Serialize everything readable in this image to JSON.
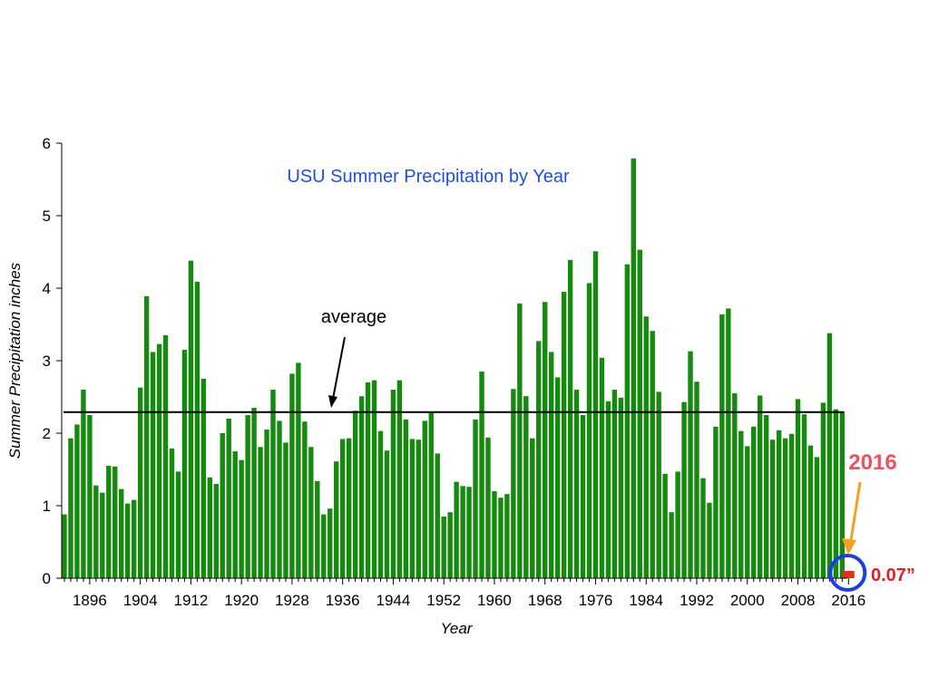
{
  "chart_data": {
    "type": "bar",
    "title": "USU Summer Precipitation by Year",
    "xlabel": "Year",
    "ylabel": "Summer Precipitation  inches",
    "ylim": [
      0,
      6
    ],
    "yticks": [
      0,
      1,
      2,
      3,
      4,
      5,
      6
    ],
    "xticks": [
      1896,
      1904,
      1912,
      1920,
      1928,
      1936,
      1944,
      1952,
      1960,
      1968,
      1976,
      1984,
      1992,
      2000,
      2008,
      2016
    ],
    "x_start": 1892,
    "x_end": 2016,
    "grid": false,
    "years": [
      1892,
      1893,
      1894,
      1895,
      1896,
      1897,
      1898,
      1899,
      1900,
      1901,
      1902,
      1903,
      1904,
      1905,
      1906,
      1907,
      1908,
      1909,
      1910,
      1911,
      1912,
      1913,
      1914,
      1915,
      1916,
      1917,
      1918,
      1919,
      1920,
      1921,
      1922,
      1923,
      1924,
      1925,
      1926,
      1927,
      1928,
      1929,
      1930,
      1931,
      1932,
      1933,
      1934,
      1935,
      1936,
      1937,
      1938,
      1939,
      1940,
      1941,
      1942,
      1943,
      1944,
      1945,
      1946,
      1947,
      1948,
      1949,
      1950,
      1951,
      1952,
      1953,
      1954,
      1955,
      1956,
      1957,
      1958,
      1959,
      1960,
      1961,
      1962,
      1963,
      1964,
      1965,
      1966,
      1967,
      1968,
      1969,
      1970,
      1971,
      1972,
      1973,
      1974,
      1975,
      1976,
      1977,
      1978,
      1979,
      1980,
      1981,
      1982,
      1983,
      1984,
      1985,
      1986,
      1987,
      1988,
      1989,
      1990,
      1991,
      1992,
      1993,
      1994,
      1995,
      1996,
      1997,
      1998,
      1999,
      2000,
      2001,
      2002,
      2003,
      2004,
      2005,
      2006,
      2007,
      2008,
      2009,
      2010,
      2011,
      2012,
      2013,
      2014,
      2015,
      2016
    ],
    "values": [
      0.88,
      1.93,
      2.12,
      2.6,
      2.25,
      1.28,
      1.18,
      1.55,
      1.54,
      1.23,
      1.03,
      1.08,
      2.63,
      3.89,
      3.12,
      3.23,
      3.35,
      1.79,
      1.47,
      3.15,
      4.38,
      4.09,
      2.75,
      1.39,
      1.3,
      2.0,
      2.2,
      1.75,
      1.63,
      2.25,
      2.35,
      1.81,
      2.05,
      2.6,
      2.17,
      1.87,
      2.82,
      2.97,
      2.16,
      1.81,
      1.34,
      0.88,
      0.96,
      1.61,
      1.92,
      1.93,
      2.31,
      2.51,
      2.7,
      2.73,
      2.03,
      1.76,
      2.6,
      2.73,
      2.19,
      1.92,
      1.91,
      2.17,
      2.3,
      1.72,
      0.85,
      0.91,
      1.33,
      1.27,
      1.26,
      2.19,
      2.85,
      1.94,
      1.2,
      1.11,
      1.16,
      2.61,
      3.79,
      2.51,
      1.93,
      3.27,
      3.81,
      3.12,
      2.77,
      3.95,
      4.39,
      2.6,
      2.25,
      4.07,
      4.51,
      3.04,
      2.44,
      2.6,
      2.49,
      4.33,
      5.79,
      4.53,
      3.61,
      3.41,
      2.57,
      1.44,
      0.91,
      1.47,
      2.43,
      3.13,
      2.71,
      1.38,
      1.04,
      2.09,
      3.64,
      3.72,
      2.55,
      2.03,
      1.82,
      2.09,
      2.52,
      2.25,
      1.91,
      2.04,
      1.93,
      1.99,
      2.47,
      2.26,
      1.83,
      1.67,
      2.42,
      3.38,
      2.33,
      2.3,
      0.07
    ],
    "bar_color": "#168A0E",
    "highlight": {
      "year": 2016,
      "value": 0.07,
      "color": "#E0301E"
    },
    "average": {
      "value": 2.29,
      "label": "average"
    },
    "annotation": {
      "year_label": "2016",
      "value_label": "0.07”",
      "year_label_color": "#F05060",
      "value_label_color": "#E02020",
      "arrow_color": "#F5A020",
      "circle_color": "#1E3FE0"
    },
    "title_color": "#1F4FE0"
  }
}
